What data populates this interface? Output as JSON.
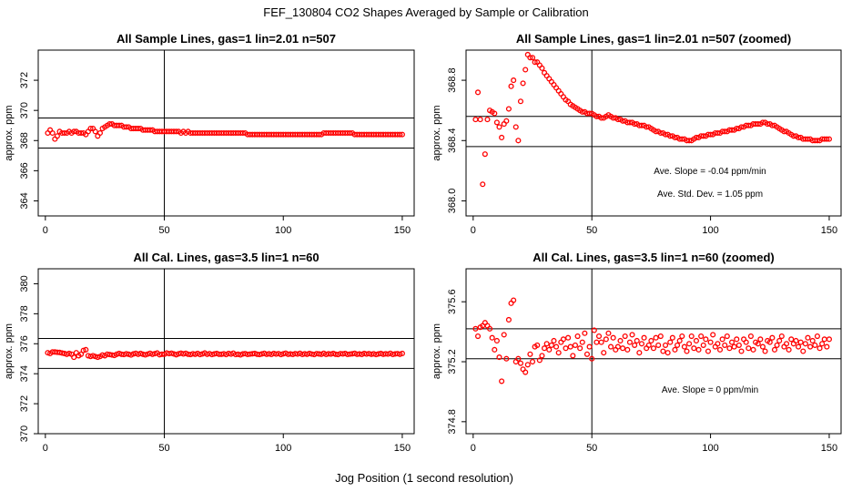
{
  "title": "FEF_130804  CO2 Shapes Averaged by Sample or Calibration",
  "xlabel": "Jog Position (1 second resolution)",
  "chart_data": [
    {
      "type": "scatter",
      "title": "All Sample Lines, gas=1 lin=2.01 n=507",
      "ylabel": "approx. ppm",
      "xlim": [
        -3,
        155
      ],
      "ylim": [
        363,
        374
      ],
      "xticks": [
        "0",
        "50",
        "100",
        "150"
      ],
      "yticks": [
        "364",
        "366",
        "368",
        "370",
        "372"
      ],
      "hlines": [
        367.5,
        369.5
      ],
      "vline": 50,
      "annotations": [],
      "x": [
        1,
        2,
        3,
        4,
        5,
        6,
        7,
        8,
        9,
        10,
        11,
        12,
        13,
        14,
        15,
        16,
        17,
        18,
        19,
        20,
        21,
        22,
        23,
        24,
        25,
        26,
        27,
        28,
        29,
        30,
        31,
        32,
        33,
        34,
        35,
        36,
        37,
        38,
        39,
        40,
        41,
        42,
        43,
        44,
        45,
        46,
        47,
        48,
        49,
        50,
        51,
        52,
        53,
        54,
        55,
        56,
        57,
        58,
        59,
        60,
        61,
        62,
        63,
        64,
        65,
        66,
        67,
        68,
        69,
        70,
        71,
        72,
        73,
        74,
        75,
        76,
        77,
        78,
        79,
        80,
        81,
        82,
        83,
        84,
        85,
        86,
        87,
        88,
        89,
        90,
        91,
        92,
        93,
        94,
        95,
        96,
        97,
        98,
        99,
        100,
        101,
        102,
        103,
        104,
        105,
        106,
        107,
        108,
        109,
        110,
        111,
        112,
        113,
        114,
        115,
        116,
        117,
        118,
        119,
        120,
        121,
        122,
        123,
        124,
        125,
        126,
        127,
        128,
        129,
        130,
        131,
        132,
        133,
        134,
        135,
        136,
        137,
        138,
        139,
        140,
        141,
        142,
        143,
        144,
        145,
        146,
        147,
        148,
        149,
        150
      ],
      "y": [
        368.5,
        368.7,
        368.5,
        368.1,
        368.3,
        368.6,
        368.5,
        368.5,
        368.5,
        368.6,
        368.5,
        368.6,
        368.6,
        368.5,
        368.5,
        368.5,
        368.4,
        368.6,
        368.8,
        368.8,
        368.6,
        368.3,
        368.5,
        368.8,
        368.9,
        369.0,
        369.1,
        369.1,
        369.0,
        369.0,
        369.0,
        369.0,
        368.9,
        368.9,
        368.9,
        368.8,
        368.8,
        368.8,
        368.8,
        368.8,
        368.7,
        368.7,
        368.7,
        368.7,
        368.7,
        368.6,
        368.6,
        368.6,
        368.6,
        368.6,
        368.6,
        368.6,
        368.6,
        368.6,
        368.6,
        368.6,
        368.5,
        368.6,
        368.5,
        368.6,
        368.5,
        368.5,
        368.5,
        368.5,
        368.5,
        368.5,
        368.5,
        368.5,
        368.5,
        368.5,
        368.5,
        368.5,
        368.5,
        368.5,
        368.5,
        368.5,
        368.5,
        368.5,
        368.5,
        368.5,
        368.5,
        368.5,
        368.5,
        368.5,
        368.4,
        368.4,
        368.4,
        368.4,
        368.4,
        368.4,
        368.4,
        368.4,
        368.4,
        368.4,
        368.4,
        368.4,
        368.4,
        368.4,
        368.4,
        368.4,
        368.4,
        368.4,
        368.4,
        368.4,
        368.4,
        368.4,
        368.4,
        368.4,
        368.4,
        368.4,
        368.4,
        368.4,
        368.4,
        368.4,
        368.4,
        368.4,
        368.5,
        368.5,
        368.5,
        368.5,
        368.5,
        368.5,
        368.5,
        368.5,
        368.5,
        368.5,
        368.5,
        368.5,
        368.5,
        368.4,
        368.4,
        368.4,
        368.4,
        368.4,
        368.4,
        368.4,
        368.4,
        368.4,
        368.4,
        368.4,
        368.4,
        368.4,
        368.4,
        368.4,
        368.4,
        368.4,
        368.4,
        368.4,
        368.4,
        368.4
      ]
    },
    {
      "type": "scatter",
      "title": "All Sample Lines, gas=1 lin=2.01 n=507 (zoomed)",
      "ylabel": "approx. ppm",
      "xlim": [
        -3,
        155
      ],
      "ylim": [
        367.9,
        369.0
      ],
      "xticks": [
        "0",
        "50",
        "100",
        "150"
      ],
      "yticks": [
        "368.0",
        "368.4",
        "368.8"
      ],
      "hlines": [
        368.36,
        368.56
      ],
      "vline": 50,
      "annotations": [
        "Ave. Slope =  -0.04  ppm/min",
        "Ave. Std. Dev. =  1.05  ppm"
      ],
      "x": [
        1,
        2,
        3,
        4,
        5,
        6,
        7,
        8,
        9,
        10,
        11,
        12,
        13,
        14,
        15,
        16,
        17,
        18,
        19,
        20,
        21,
        22,
        23,
        24,
        25,
        26,
        27,
        28,
        29,
        30,
        31,
        32,
        33,
        34,
        35,
        36,
        37,
        38,
        39,
        40,
        41,
        42,
        43,
        44,
        45,
        46,
        47,
        48,
        49,
        50,
        51,
        52,
        53,
        54,
        55,
        56,
        57,
        58,
        59,
        60,
        61,
        62,
        63,
        64,
        65,
        66,
        67,
        68,
        69,
        70,
        71,
        72,
        73,
        74,
        75,
        76,
        77,
        78,
        79,
        80,
        81,
        82,
        83,
        84,
        85,
        86,
        87,
        88,
        89,
        90,
        91,
        92,
        93,
        94,
        95,
        96,
        97,
        98,
        99,
        100,
        101,
        102,
        103,
        104,
        105,
        106,
        107,
        108,
        109,
        110,
        111,
        112,
        113,
        114,
        115,
        116,
        117,
        118,
        119,
        120,
        121,
        122,
        123,
        124,
        125,
        126,
        127,
        128,
        129,
        130,
        131,
        132,
        133,
        134,
        135,
        136,
        137,
        138,
        139,
        140,
        141,
        142,
        143,
        144,
        145,
        146,
        147,
        148,
        149,
        150
      ],
      "y": [
        368.54,
        368.72,
        368.54,
        368.11,
        368.31,
        368.54,
        368.6,
        368.59,
        368.58,
        368.52,
        368.49,
        368.42,
        368.51,
        368.53,
        368.61,
        368.76,
        368.8,
        368.49,
        368.4,
        368.66,
        368.78,
        368.87,
        368.97,
        368.95,
        368.95,
        368.92,
        368.92,
        368.9,
        368.88,
        368.85,
        368.83,
        368.81,
        368.79,
        368.77,
        368.75,
        368.73,
        368.71,
        368.69,
        368.67,
        368.66,
        368.64,
        368.63,
        368.62,
        368.61,
        368.6,
        368.59,
        368.59,
        368.58,
        368.58,
        368.58,
        368.57,
        368.56,
        368.56,
        368.55,
        368.55,
        368.56,
        368.57,
        368.56,
        368.55,
        368.55,
        368.54,
        368.54,
        368.53,
        368.53,
        368.52,
        368.52,
        368.52,
        368.51,
        368.51,
        368.5,
        368.5,
        368.5,
        368.49,
        368.49,
        368.48,
        368.47,
        368.46,
        368.46,
        368.45,
        368.45,
        368.44,
        368.44,
        368.43,
        368.43,
        368.42,
        368.42,
        368.41,
        368.41,
        368.41,
        368.4,
        368.4,
        368.4,
        368.41,
        368.42,
        368.42,
        368.43,
        368.43,
        368.43,
        368.44,
        368.44,
        368.44,
        368.45,
        368.45,
        368.45,
        368.46,
        368.46,
        368.46,
        368.47,
        368.47,
        368.47,
        368.48,
        368.48,
        368.49,
        368.49,
        368.5,
        368.5,
        368.5,
        368.51,
        368.51,
        368.51,
        368.51,
        368.52,
        368.52,
        368.51,
        368.51,
        368.5,
        368.5,
        368.49,
        368.48,
        368.47,
        368.46,
        368.46,
        368.45,
        368.44,
        368.43,
        368.43,
        368.42,
        368.42,
        368.41,
        368.41,
        368.41,
        368.41,
        368.4,
        368.4,
        368.4,
        368.4,
        368.41,
        368.41,
        368.41,
        368.41
      ]
    },
    {
      "type": "scatter",
      "title": "All Cal. Lines, gas=3.5 lin=1 n=60",
      "ylabel": "approx. ppm",
      "xlim": [
        -3,
        155
      ],
      "ylim": [
        370,
        381
      ],
      "xticks": [
        "0",
        "50",
        "100",
        "150"
      ],
      "yticks": [
        "370",
        "372",
        "374",
        "376",
        "378",
        "380"
      ],
      "hlines": [
        374.35,
        376.35
      ],
      "vline": 50,
      "annotations": [],
      "x": [
        1,
        2,
        3,
        4,
        5,
        6,
        7,
        8,
        9,
        10,
        11,
        12,
        13,
        14,
        15,
        16,
        17,
        18,
        19,
        20,
        21,
        22,
        23,
        24,
        25,
        26,
        27,
        28,
        29,
        30,
        31,
        32,
        33,
        34,
        35,
        36,
        37,
        38,
        39,
        40,
        41,
        42,
        43,
        44,
        45,
        46,
        47,
        48,
        49,
        50,
        51,
        52,
        53,
        54,
        55,
        56,
        57,
        58,
        59,
        60,
        61,
        62,
        63,
        64,
        65,
        66,
        67,
        68,
        69,
        70,
        71,
        72,
        73,
        74,
        75,
        76,
        77,
        78,
        79,
        80,
        81,
        82,
        83,
        84,
        85,
        86,
        87,
        88,
        89,
        90,
        91,
        92,
        93,
        94,
        95,
        96,
        97,
        98,
        99,
        100,
        101,
        102,
        103,
        104,
        105,
        106,
        107,
        108,
        109,
        110,
        111,
        112,
        113,
        114,
        115,
        116,
        117,
        118,
        119,
        120,
        121,
        122,
        123,
        124,
        125,
        126,
        127,
        128,
        129,
        130,
        131,
        132,
        133,
        134,
        135,
        136,
        137,
        138,
        139,
        140,
        141,
        142,
        143,
        144,
        145,
        146,
        147,
        148,
        149,
        150
      ],
      "y": [
        375.4,
        375.35,
        375.45,
        375.45,
        375.43,
        375.42,
        375.38,
        375.35,
        375.3,
        375.35,
        375.3,
        375.1,
        375.4,
        375.2,
        375.3,
        375.55,
        375.6,
        375.2,
        375.15,
        375.2,
        375.15,
        375.1,
        375.15,
        375.25,
        375.2,
        375.3,
        375.28,
        375.25,
        375.22,
        375.3,
        375.35,
        375.3,
        375.28,
        375.33,
        375.3,
        375.25,
        375.32,
        375.36,
        375.3,
        375.35,
        375.3,
        375.26,
        375.31,
        375.36,
        375.3,
        375.34,
        375.38,
        375.27,
        375.3,
        375.3,
        375.38,
        375.34,
        375.37,
        375.32,
        375.27,
        375.33,
        375.37,
        375.32,
        375.36,
        375.3,
        375.28,
        375.33,
        375.3,
        375.35,
        375.28,
        375.32,
        375.38,
        375.3,
        375.34,
        375.28,
        375.32,
        375.35,
        375.3,
        375.3,
        375.33,
        375.28,
        375.35,
        375.31,
        375.37,
        375.28,
        375.3,
        375.26,
        375.32,
        375.34,
        375.29,
        375.31,
        375.33,
        375.35,
        375.3,
        375.28,
        375.32,
        375.36,
        375.3,
        375.33,
        375.29,
        375.35,
        375.31,
        375.34,
        375.28,
        375.33,
        375.37,
        375.3,
        375.32,
        375.29,
        375.34,
        375.31,
        375.36,
        375.29,
        375.33,
        375.3,
        375.35,
        375.31,
        375.28,
        375.34,
        375.32,
        375.3,
        375.36,
        375.29,
        375.33,
        375.31,
        375.35,
        375.3,
        375.28,
        375.34,
        375.32,
        375.35,
        375.29,
        375.31,
        375.33,
        375.36,
        375.3,
        375.32,
        375.29,
        375.35,
        375.31,
        375.34,
        375.3,
        375.33,
        375.28,
        375.32,
        375.35,
        375.3,
        375.33,
        375.31,
        375.36,
        375.29,
        375.32,
        375.34,
        375.3,
        375.35
      ]
    },
    {
      "type": "scatter",
      "title": "All Cal. Lines, gas=3.5 lin=1 n=60 (zoomed)",
      "ylabel": "approx. ppm",
      "xlim": [
        -3,
        155
      ],
      "ylim": [
        374.72,
        375.82
      ],
      "xticks": [
        "0",
        "50",
        "100",
        "150"
      ],
      "yticks": [
        "374.8",
        "375.2",
        "375.6"
      ],
      "hlines": [
        375.22,
        375.42
      ],
      "vline": 50,
      "annotations": [
        "Ave. Slope =  0  ppm/min"
      ],
      "x": [
        1,
        2,
        3,
        4,
        5,
        6,
        7,
        8,
        9,
        10,
        11,
        12,
        13,
        14,
        15,
        16,
        17,
        18,
        19,
        20,
        21,
        22,
        23,
        24,
        25,
        26,
        27,
        28,
        29,
        30,
        31,
        32,
        33,
        34,
        35,
        36,
        37,
        38,
        39,
        40,
        41,
        42,
        43,
        44,
        45,
        46,
        47,
        48,
        49,
        50,
        51,
        52,
        53,
        54,
        55,
        56,
        57,
        58,
        59,
        60,
        61,
        62,
        63,
        64,
        65,
        66,
        67,
        68,
        69,
        70,
        71,
        72,
        73,
        74,
        75,
        76,
        77,
        78,
        79,
        80,
        81,
        82,
        83,
        84,
        85,
        86,
        87,
        88,
        89,
        90,
        91,
        92,
        93,
        94,
        95,
        96,
        97,
        98,
        99,
        100,
        101,
        102,
        103,
        104,
        105,
        106,
        107,
        108,
        109,
        110,
        111,
        112,
        113,
        114,
        115,
        116,
        117,
        118,
        119,
        120,
        121,
        122,
        123,
        124,
        125,
        126,
        127,
        128,
        129,
        130,
        131,
        132,
        133,
        134,
        135,
        136,
        137,
        138,
        139,
        140,
        141,
        142,
        143,
        144,
        145,
        146,
        147,
        148,
        149,
        150
      ],
      "y": [
        375.42,
        375.37,
        375.43,
        375.44,
        375.46,
        375.44,
        375.42,
        375.36,
        375.28,
        375.34,
        375.23,
        375.07,
        375.38,
        375.22,
        375.48,
        375.59,
        375.61,
        375.2,
        375.22,
        375.19,
        375.15,
        375.13,
        375.18,
        375.25,
        375.2,
        375.3,
        375.31,
        375.21,
        375.24,
        375.29,
        375.32,
        375.28,
        375.31,
        375.34,
        375.3,
        375.26,
        375.33,
        375.35,
        375.29,
        375.36,
        375.3,
        375.24,
        375.31,
        375.37,
        375.29,
        375.33,
        375.39,
        375.25,
        375.3,
        375.22,
        375.41,
        375.33,
        375.37,
        375.33,
        375.26,
        375.35,
        375.39,
        375.3,
        375.36,
        375.28,
        375.3,
        375.34,
        375.29,
        375.37,
        375.28,
        375.33,
        375.38,
        375.31,
        375.34,
        375.26,
        375.32,
        375.36,
        375.29,
        375.31,
        375.34,
        375.29,
        375.36,
        375.31,
        375.37,
        375.27,
        375.31,
        375.26,
        375.33,
        375.36,
        375.28,
        375.31,
        375.34,
        375.37,
        375.3,
        375.27,
        375.32,
        375.37,
        375.29,
        375.34,
        375.28,
        375.37,
        375.31,
        375.35,
        375.27,
        375.33,
        375.38,
        375.3,
        375.32,
        375.28,
        375.35,
        375.31,
        375.37,
        375.29,
        375.33,
        375.3,
        375.35,
        375.31,
        375.27,
        375.35,
        375.33,
        375.29,
        375.37,
        375.28,
        375.33,
        375.32,
        375.35,
        375.3,
        375.27,
        375.34,
        375.33,
        375.36,
        375.28,
        375.31,
        375.34,
        375.37,
        375.3,
        375.32,
        375.28,
        375.35,
        375.32,
        375.34,
        375.3,
        375.33,
        375.27,
        375.32,
        375.36,
        375.3,
        375.34,
        375.31,
        375.37,
        375.29,
        375.32,
        375.35,
        375.3,
        375.35
      ]
    }
  ]
}
